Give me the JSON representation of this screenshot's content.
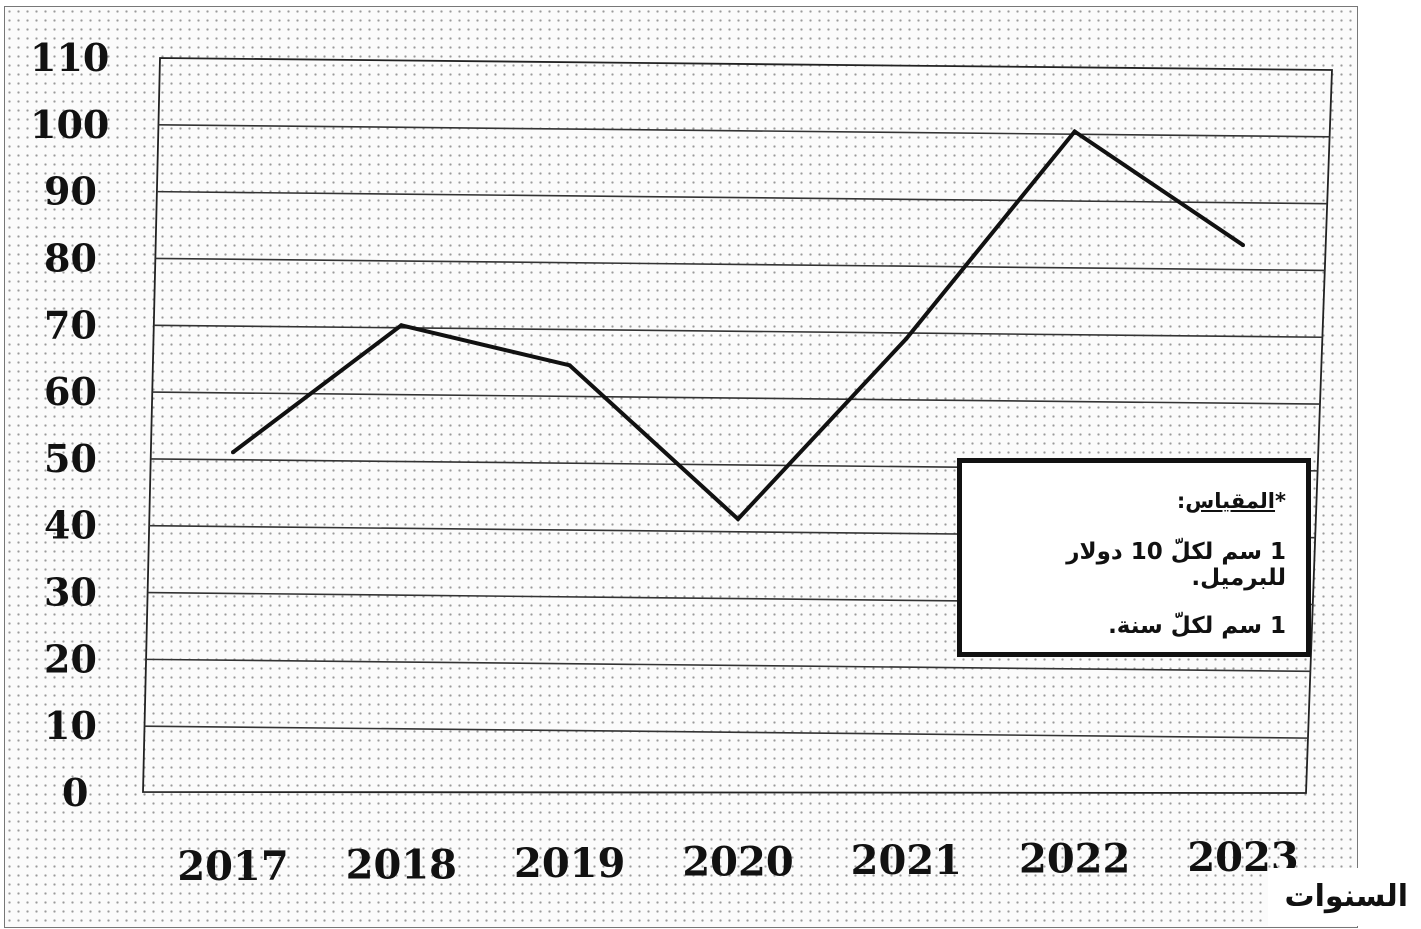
{
  "chart_data": {
    "type": "line",
    "categories": [
      "2017",
      "2018",
      "2019",
      "2020",
      "2021",
      "2022",
      "2023"
    ],
    "series": [
      {
        "values": [
          51,
          70,
          64,
          41,
          68,
          99,
          82
        ]
      }
    ],
    "ylim": [
      0,
      110
    ],
    "yticks": [
      "0",
      "10",
      "20",
      "30",
      "40",
      "50",
      "60",
      "70",
      "80",
      "90",
      "100",
      "110"
    ],
    "xlabel": "السنوات",
    "ylabel": "",
    "grid": "horizontal",
    "line_color": "#111111"
  },
  "legend_box": {
    "title": "المقياس",
    "title_star": "*",
    "title_colon": ":",
    "lines": [
      "1 سم لكلّ 10 دولار للبرميل.",
      "1 سم لكلّ سنة."
    ]
  }
}
